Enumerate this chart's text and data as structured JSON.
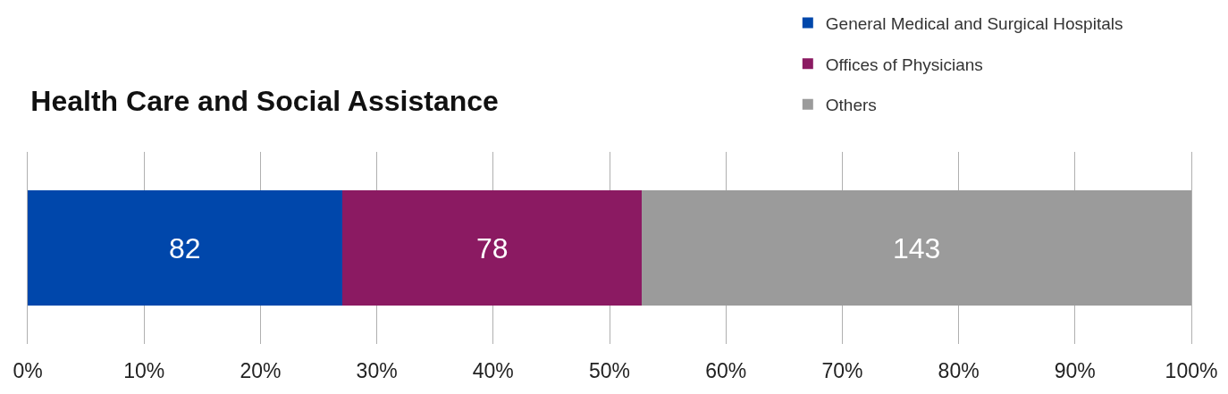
{
  "chart_data": {
    "type": "bar",
    "title": "Health Care and Social Assistance",
    "orientation": "horizontal",
    "stacked": true,
    "categories": [
      null
    ],
    "series": [
      {
        "name": "General Medical and Surgical Hospitals",
        "color": "#0047ab",
        "values": [
          27.06
        ]
      },
      {
        "name": "Offices of Physicians",
        "color": "#8b1a62",
        "values": [
          25.74
        ]
      },
      {
        "name": "Others",
        "color": "#9b9b9b",
        "values": [
          47.2
        ]
      }
    ],
    "annotations": [
      "82",
      "78",
      "143"
    ],
    "xlim": [
      0,
      100
    ],
    "xticks": [
      {
        "value": 0,
        "label": "0%"
      },
      {
        "value": 10,
        "label": "10%"
      },
      {
        "value": 20,
        "label": "20%"
      },
      {
        "value": 30,
        "label": "30%"
      },
      {
        "value": 40,
        "label": "40%"
      },
      {
        "value": 50,
        "label": "50%"
      },
      {
        "value": 60,
        "label": "60%"
      },
      {
        "value": 70,
        "label": "70%"
      },
      {
        "value": 80,
        "label": "80%"
      },
      {
        "value": 90,
        "label": "90%"
      },
      {
        "value": 100,
        "label": "100%"
      }
    ],
    "grid": "x",
    "legend": "top right",
    "tick_labels": "x"
  }
}
